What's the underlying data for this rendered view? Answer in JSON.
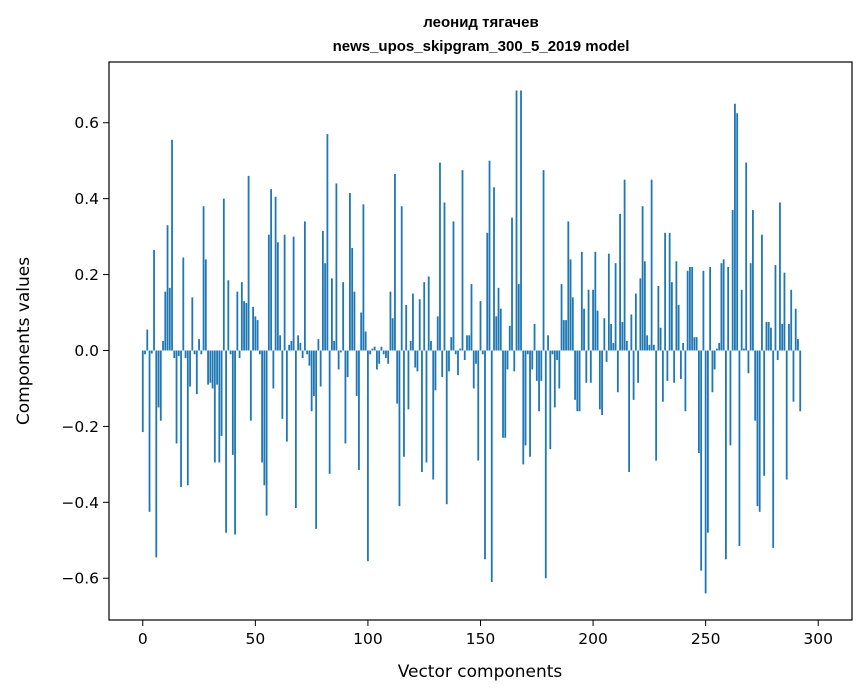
{
  "chart_data": {
    "type": "bar",
    "title": "леонид тягачев",
    "subtitle": "news_upos_skipgram_300_5_2019 model",
    "xlabel": "Vector components",
    "ylabel": "Components values",
    "xlim": [
      -15,
      315
    ],
    "ylim": [
      -0.71,
      0.76
    ],
    "xticks": [
      0,
      50,
      100,
      150,
      200,
      250,
      300
    ],
    "xtick_labels": [
      "0",
      "50",
      "100",
      "150",
      "200",
      "250",
      "300"
    ],
    "yticks": [
      -0.6,
      -0.4,
      -0.2,
      0.0,
      0.2,
      0.4,
      0.6
    ],
    "ytick_labels": [
      "−0.6",
      "−0.4",
      "−0.2",
      "0.0",
      "0.2",
      "0.4",
      "0.6"
    ],
    "grid": false,
    "bar_color": "#1f77b4",
    "x_start": 0,
    "values": [
      -0.215,
      -0.01,
      0.055,
      -0.425,
      -0.008,
      0.265,
      -0.545,
      -0.15,
      -0.185,
      0.025,
      0.155,
      0.33,
      0.165,
      0.555,
      -0.02,
      -0.245,
      -0.015,
      -0.36,
      0.245,
      -0.02,
      -0.355,
      -0.095,
      0.14,
      -0.01,
      -0.115,
      0.03,
      -0.01,
      0.38,
      0.24,
      -0.09,
      -0.085,
      -0.1,
      -0.295,
      -0.09,
      -0.295,
      -0.225,
      0.4,
      -0.48,
      0.185,
      -0.01,
      -0.275,
      -0.485,
      0.155,
      -0.02,
      0.18,
      0.13,
      0.125,
      0.46,
      -0.185,
      0.115,
      0.09,
      0.08,
      -0.01,
      -0.295,
      -0.355,
      -0.435,
      0.305,
      0.425,
      -0.1,
      0.405,
      0.285,
      0.04,
      -0.18,
      0.305,
      -0.24,
      0.015,
      0.025,
      0.3,
      -0.415,
      0.04,
      0.02,
      -0.02,
      0.34,
      -0.01,
      -0.04,
      -0.16,
      -0.12,
      -0.47,
      0.03,
      -0.095,
      0.315,
      0.23,
      0.57,
      -0.325,
      0.19,
      0.025,
      0.44,
      -0.05,
      -0.005,
      0.18,
      -0.245,
      -0.07,
      0.415,
      0.27,
      0.155,
      -0.12,
      -0.315,
      0.1,
      0.385,
      0.05,
      -0.555,
      -0.01,
      0.005,
      0.01,
      -0.05,
      -0.035,
      0.01,
      -0.01,
      -0.02,
      -0.035,
      0.155,
      0.085,
      0.465,
      -0.14,
      -0.41,
      0.38,
      -0.28,
      0.12,
      -0.155,
      0.025,
      0.15,
      -0.045,
      -0.055,
      0.135,
      -0.32,
      0.18,
      -0.295,
      0.195,
      0.025,
      -0.34,
      -0.105,
      0.09,
      0.495,
      -0.07,
      0.39,
      -0.405,
      -0.055,
      0.035,
      0.34,
      -0.01,
      -0.065,
      0.005,
      0.475,
      -0.025,
      0.04,
      0.04,
      0.175,
      -0.1,
      -0.035,
      -0.29,
      0.13,
      -0.01,
      -0.55,
      0.31,
      0.5,
      -0.61,
      0.43,
      0.09,
      0.165,
      0.11,
      -0.23,
      -0.23,
      -0.05,
      0.065,
      0.35,
      -0.055,
      0.685,
      0.175,
      0.685,
      -0.3,
      -0.25,
      -0.01,
      -0.28,
      -0.05,
      0.07,
      -0.08,
      -0.16,
      -0.08,
      0.475,
      -0.6,
      0.04,
      -0.26,
      -0.01,
      -0.15,
      -0.025,
      -0.1,
      0.175,
      0.08,
      0.08,
      0.34,
      0.24,
      0.14,
      -0.13,
      -0.16,
      -0.16,
      0.26,
      0.11,
      -0.085,
      0.16,
      -0.085,
      0.16,
      0.26,
      0.105,
      -0.155,
      -0.17,
      0.085,
      -0.03,
      0.255,
      0.07,
      0.02,
      0.23,
      -0.11,
      0.36,
      0.075,
      0.45,
      0.025,
      -0.32,
      0.095,
      -0.13,
      0.15,
      -0.085,
      0.19,
      0.38,
      0.235,
      0.04,
      0.015,
      0.45,
      0.015,
      -0.29,
      0.17,
      0.06,
      -0.135,
      0.31,
      -0.08,
      0.31,
      0.18,
      -0.085,
      0.235,
      0.12,
      -0.075,
      0.02,
      -0.16,
      0.21,
      0.22,
      0.22,
      0.035,
      0.035,
      -0.27,
      -0.58,
      0.21,
      -0.64,
      -0.48,
      0.22,
      -0.11,
      -0.05,
      0.005,
      0.02,
      0.23,
      0.24,
      -0.55,
      0.22,
      -0.25,
      0.37,
      0.65,
      0.625,
      -0.515,
      0.16,
      0.005,
      0.495,
      -0.06,
      0.23,
      0.37,
      -0.185,
      -0.41,
      -0.425,
      0.305,
      -0.33,
      0.075,
      0.075,
      0.06,
      -0.52,
      0.225,
      -0.025,
      0.39,
      0.07,
      0.205,
      -0.34,
      0.07,
      0.16,
      -0.135,
      0.11,
      0.03,
      -0.16
    ]
  }
}
